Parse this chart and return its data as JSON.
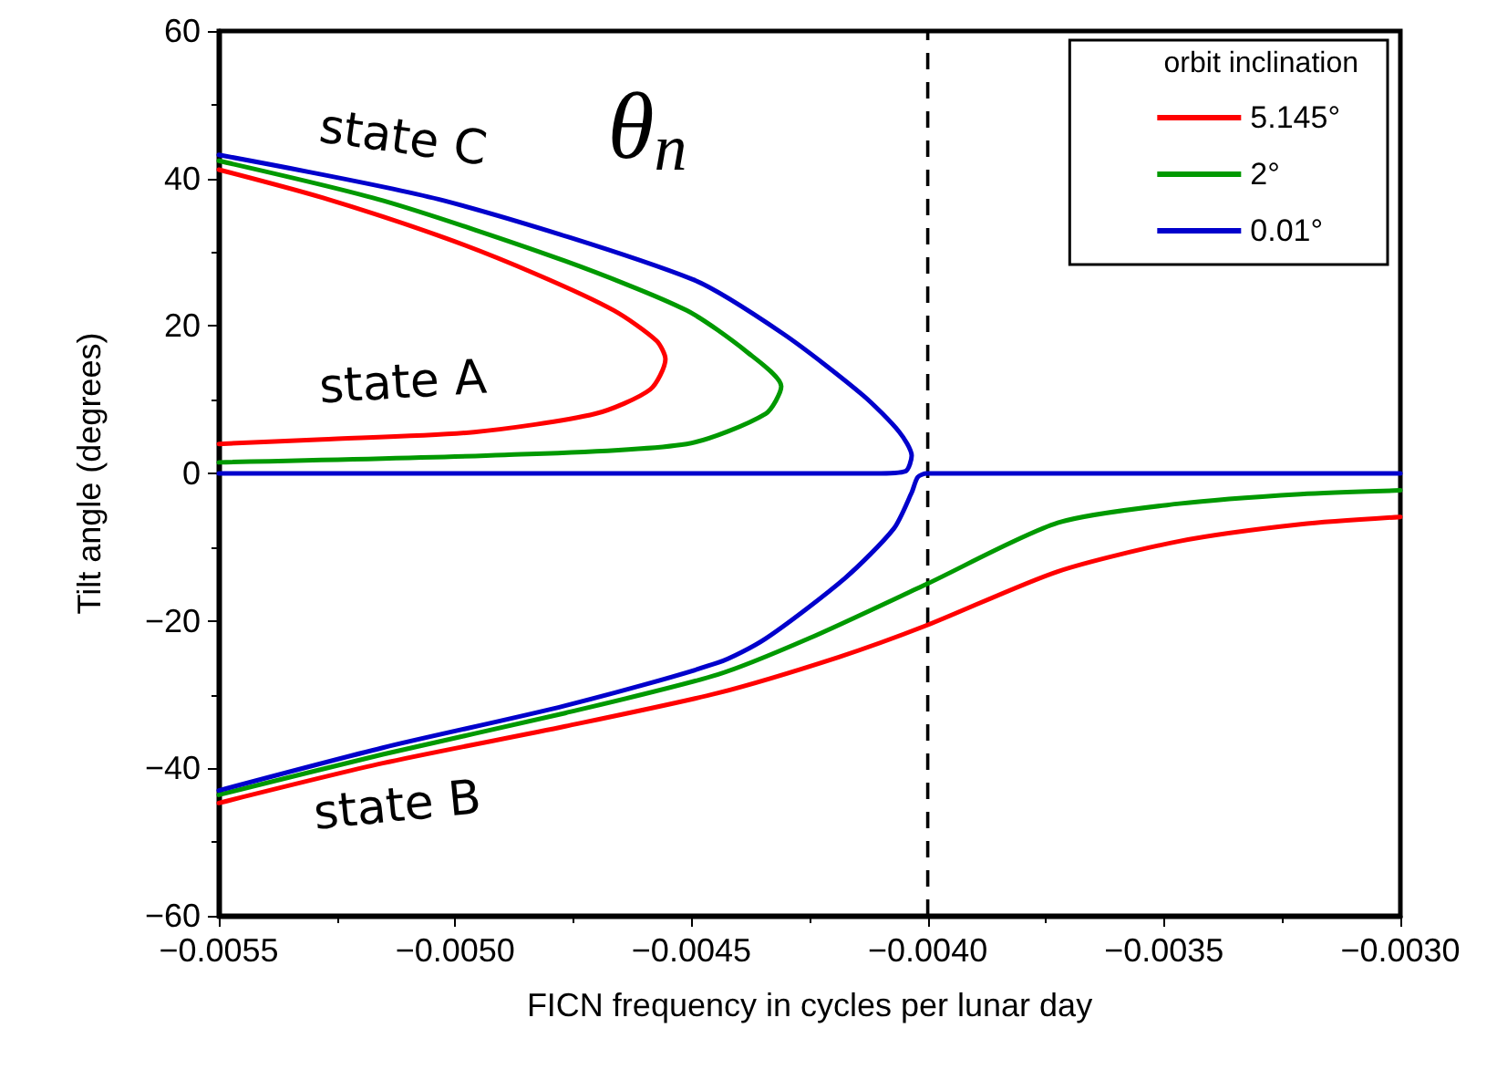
{
  "chart_data": {
    "type": "line",
    "xlabel": "FICN frequency in cycles per lunar day",
    "ylabel": "Tilt angle (degrees)",
    "legend_title": "orbit inclination",
    "annotations": [
      "θ$_{n}$",
      "state C",
      "state A",
      "state B"
    ],
    "xlim": [
      -0.0055,
      -0.003
    ],
    "ylim": [
      -60,
      60
    ],
    "xticks": [
      {
        "value": -0.0055,
        "label": "−0.0055"
      },
      {
        "value": -0.005,
        "label": "−0.0050"
      },
      {
        "value": -0.0045,
        "label": "−0.0045"
      },
      {
        "value": -0.004,
        "label": "−0.0040"
      },
      {
        "value": -0.0035,
        "label": "−0.0035"
      },
      {
        "value": -0.003,
        "label": "−0.0030"
      }
    ],
    "yticks": [
      {
        "value": -60,
        "label": "−60"
      },
      {
        "value": -40,
        "label": "−40"
      },
      {
        "value": -20,
        "label": "−20"
      },
      0,
      20,
      40,
      60
    ],
    "grid": false,
    "legend": "top right",
    "marker": "none",
    "line_style": "solid",
    "ref_lines": [
      {
        "axis": "x",
        "value": -0.004,
        "color": "#000000",
        "line_style": "dashed"
      }
    ],
    "series": [
      {
        "name": "5.145°",
        "color": "#ff0000",
        "x": [
          -0.0055,
          -0.005281,
          -0.005024,
          -0.004831,
          -0.004664,
          -0.004574,
          -0.004555,
          -0.004587,
          -0.004703,
          -0.00496,
          -0.005281,
          -0.0055
        ],
        "values": [
          41.2,
          37.4,
          32.0,
          27.1,
          22.1,
          18.0,
          15.5,
          11.4,
          8.1,
          5.6,
          4.6,
          4.0
        ]
      },
      {
        "name": "2°",
        "color": "#009900",
        "x": [
          -0.0055,
          -0.005153,
          -0.004767,
          -0.00451,
          -0.004381,
          -0.00431,
          -0.004343,
          -0.00451,
          -0.004895,
          -0.0055
        ],
        "values": [
          42.4,
          37.0,
          28.8,
          22.1,
          16.4,
          11.8,
          8.1,
          4.0,
          2.5,
          1.5
        ]
      },
      {
        "name": "0.01°",
        "color": "#0000cc",
        "x": [
          -0.0055,
          -0.005024,
          -0.004497,
          -0.004305,
          -0.004137,
          -0.00406,
          -0.004034,
          -0.004047,
          -0.004111,
          -0.0055
        ],
        "values": [
          43.2,
          37.0,
          26.3,
          18.9,
          10.6,
          5.6,
          2.4,
          0.3,
          0,
          0
        ]
      },
      {
        "color": "#ff0000",
        "x": [
          -0.0055,
          -0.005153,
          -0.004767,
          -0.004445,
          -0.004188,
          -0.004002,
          -0.003725,
          -0.003468,
          -0.003211,
          -0.003
        ],
        "values": [
          -44.7,
          -39.3,
          -34.3,
          -29.8,
          -24.9,
          -20.6,
          -13.3,
          -9.2,
          -6.9,
          -5.9
        ]
      },
      {
        "color": "#009900",
        "x": [
          -0.0055,
          -0.005153,
          -0.004767,
          -0.004445,
          -0.004252,
          -0.004002,
          -0.003725,
          -0.003468,
          -0.003211,
          -0.003
        ],
        "values": [
          -43.6,
          -38.1,
          -32.5,
          -27.3,
          -22.4,
          -15.0,
          -6.7,
          -4.1,
          -2.8,
          -2.3
        ]
      },
      {
        "color": "#0000cc",
        "x": [
          -0.0055,
          -0.005153,
          -0.004767,
          -0.004445,
          -0.004343,
          -0.004175,
          -0.004072,
          -0.004034,
          -0.004021,
          -0.004002,
          -0.003
        ],
        "values": [
          -43.0,
          -37.2,
          -31.5,
          -25.7,
          -22.4,
          -14.2,
          -7.5,
          -2.6,
          -0.5,
          0,
          0
        ]
      }
    ]
  }
}
